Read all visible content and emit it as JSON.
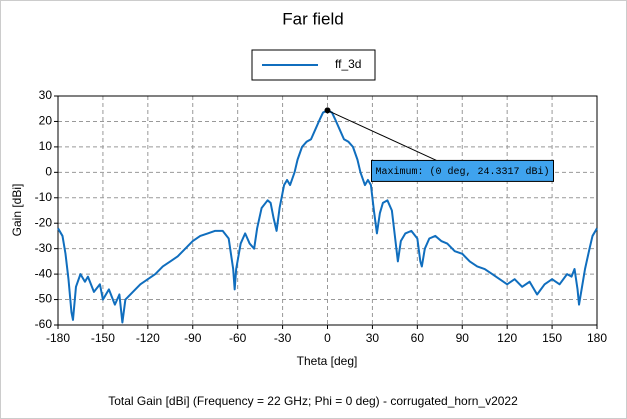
{
  "chart_data": {
    "type": "line",
    "title": "Far field",
    "xlabel": "Theta [deg]",
    "ylabel": "Gain [dBi]",
    "caption": "Total Gain [dBi] (Frequency = 22 GHz; Phi = 0 deg) - corrugated_horn_v2022",
    "x": [
      -180,
      -177,
      -175,
      -173,
      -171,
      -170,
      -168,
      -165,
      -162,
      -160,
      -156,
      -152,
      -150,
      -146,
      -142,
      -139,
      -137,
      -135,
      -130,
      -125,
      -120,
      -115,
      -110,
      -105,
      -100,
      -95,
      -90,
      -85,
      -80,
      -75,
      -70,
      -66,
      -63,
      -62,
      -61,
      -58,
      -55,
      -52,
      -49,
      -47,
      -44,
      -40,
      -38,
      -36,
      -34,
      -32,
      -29,
      -27,
      -25,
      -22,
      -20,
      -17,
      -14,
      -11,
      -8,
      -5,
      -3,
      0,
      3,
      5,
      8,
      11,
      14,
      17,
      20,
      22,
      25,
      27,
      29,
      31,
      33,
      35,
      37,
      40,
      43,
      45,
      47,
      49,
      52,
      56,
      60,
      62,
      63,
      65,
      68,
      72,
      76,
      80,
      85,
      90,
      95,
      100,
      105,
      110,
      115,
      120,
      125,
      130,
      135,
      140,
      145,
      150,
      155,
      160,
      163,
      165,
      167,
      168,
      170,
      172,
      175,
      177,
      180
    ],
    "series": [
      {
        "name": "ff_3d",
        "color": "#106ebe",
        "values": [
          -22,
          -25,
          -32,
          -42,
          -55,
          -58,
          -45,
          -40,
          -43,
          -41,
          -47,
          -44,
          -50,
          -46,
          -52,
          -48,
          -59,
          -50,
          -47,
          -44,
          -42,
          -40,
          -37,
          -35,
          -33,
          -30,
          -27,
          -25,
          -24,
          -23,
          -23,
          -26,
          -38,
          -46,
          -38,
          -28,
          -24,
          -28,
          -30,
          -22,
          -14,
          -11,
          -12,
          -18,
          -23,
          -14,
          -5,
          -3,
          -5,
          0,
          5,
          10,
          12,
          13,
          17,
          21,
          23.5,
          24.3317,
          23.5,
          21,
          17,
          13,
          12,
          10,
          5,
          0,
          -5,
          -3,
          -5,
          -15,
          -24,
          -16,
          -12,
          -11,
          -15,
          -25,
          -35,
          -27,
          -24,
          -23,
          -26,
          -35,
          -37,
          -30,
          -26,
          -25,
          -27,
          -28,
          -31,
          -32,
          -35,
          -37,
          -38,
          -40,
          -42,
          -44,
          -42,
          -45,
          -43,
          -48,
          -44,
          -42,
          -44,
          -40,
          -41,
          -38,
          -46,
          -52,
          -45,
          -38,
          -30,
          -25,
          -22
        ]
      }
    ],
    "xlim": [
      -180,
      180
    ],
    "xticks": [
      -180,
      -150,
      -120,
      -90,
      -60,
      -30,
      0,
      30,
      60,
      90,
      120,
      150,
      180
    ],
    "ylim": [
      -60,
      30
    ],
    "yticks": [
      -60,
      -50,
      -40,
      -30,
      -20,
      -10,
      0,
      10,
      20,
      30
    ],
    "grid": true,
    "legend": "top",
    "annotations": [
      {
        "text": "Maximum: (0 deg, 24.3317 dBi)",
        "x": 0,
        "y": 24.3317
      }
    ]
  }
}
